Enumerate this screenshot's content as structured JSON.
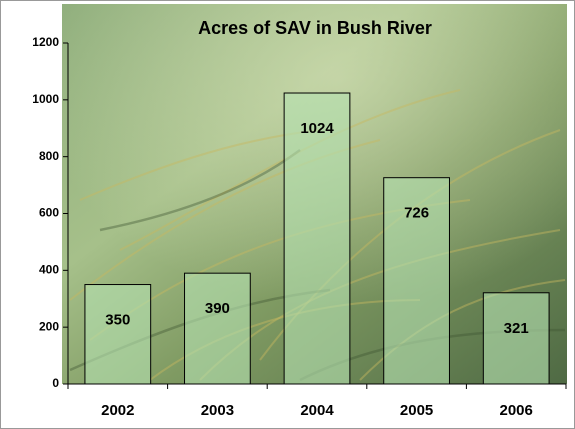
{
  "chart_data": {
    "type": "bar",
    "title": "Acres of SAV in Bush River",
    "categories": [
      "2002",
      "2003",
      "2004",
      "2005",
      "2006"
    ],
    "values": [
      350,
      390,
      1024,
      726,
      321
    ],
    "color": "#b4e0b0",
    "ylim": [
      0,
      1200
    ],
    "yticks": [
      0,
      200,
      400,
      600,
      800,
      1000,
      1200
    ]
  }
}
